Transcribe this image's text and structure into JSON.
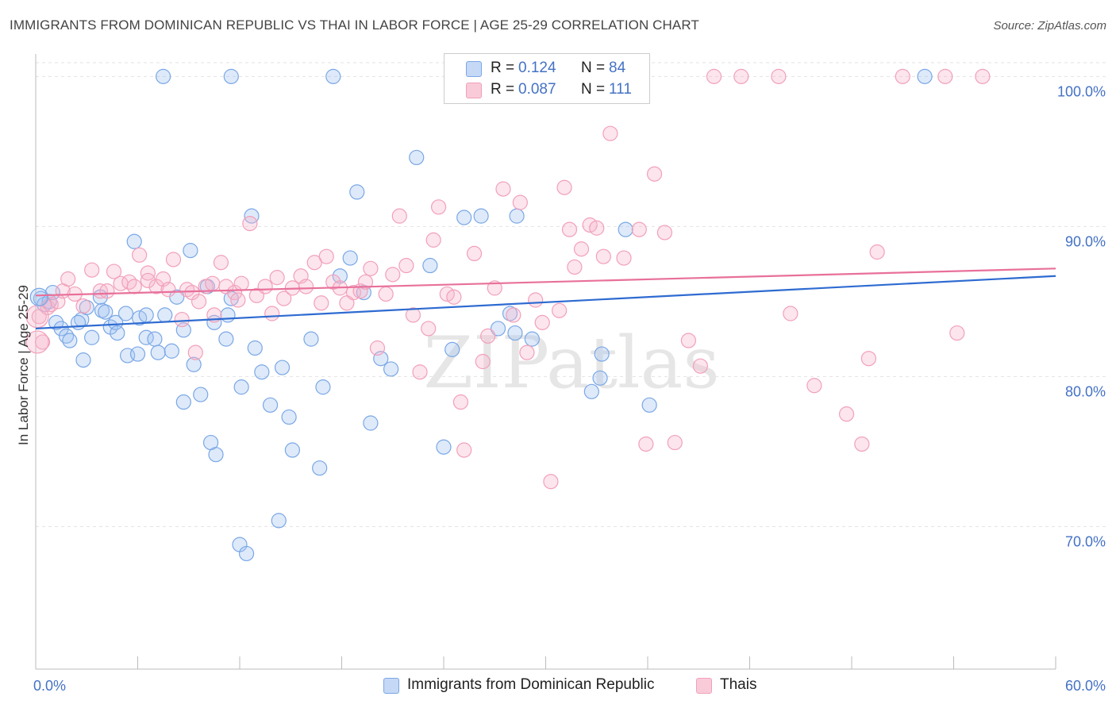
{
  "header": {
    "title": "IMMIGRANTS FROM DOMINICAN REPUBLIC VS THAI IN LABOR FORCE | AGE 25-29 CORRELATION CHART",
    "source": "Source: ZipAtlas.com"
  },
  "watermark": "ZIPatlas",
  "legend": {
    "r_label": "R =",
    "n_label": "N =",
    "rows": [
      {
        "r": "0.124",
        "n": "84"
      },
      {
        "r": "0.087",
        "n": "111"
      }
    ]
  },
  "chart_data": {
    "type": "scatter",
    "title": "IMMIGRANTS FROM DOMINICAN REPUBLIC VS THAI IN LABOR FORCE | AGE 25-29 CORRELATION CHART",
    "xlabel": "",
    "ylabel": "In Labor Force | Age 25-29",
    "xlim": [
      0,
      60
    ],
    "ylim": [
      60.5,
      101.5
    ],
    "x_tick_labels": [
      "0.0%",
      "60.0%"
    ],
    "y_ticks": [
      70,
      80,
      90,
      100
    ],
    "y_tick_labels": [
      "70.0%",
      "80.0%",
      "90.0%",
      "100.0%"
    ],
    "grid": true,
    "legend_position": "top-center",
    "series": [
      {
        "name": "Immigrants from Dominican Republic",
        "color": "#7aa7e6",
        "trend": {
          "x": [
            0,
            60
          ],
          "y": [
            83.2,
            86.7
          ]
        },
        "points": [
          [
            0.3,
            85.2
          ],
          [
            0.5,
            84.8
          ],
          [
            0.8,
            85.0
          ],
          [
            1.0,
            85.6
          ],
          [
            1.2,
            83.6
          ],
          [
            1.5,
            83.2
          ],
          [
            1.8,
            82.7
          ],
          [
            2.0,
            82.4
          ],
          [
            2.7,
            83.8
          ],
          [
            2.5,
            83.6
          ],
          [
            3.0,
            84.6
          ],
          [
            2.8,
            81.1
          ],
          [
            3.3,
            82.6
          ],
          [
            3.9,
            84.4
          ],
          [
            3.8,
            85.3
          ],
          [
            4.1,
            84.3
          ],
          [
            4.4,
            83.3
          ],
          [
            4.7,
            83.6
          ],
          [
            4.8,
            82.9
          ],
          [
            5.3,
            84.2
          ],
          [
            5.4,
            81.4
          ],
          [
            5.8,
            89.0
          ],
          [
            6.0,
            81.5
          ],
          [
            6.1,
            83.9
          ],
          [
            6.5,
            82.6
          ],
          [
            6.5,
            84.1
          ],
          [
            7.0,
            82.5
          ],
          [
            7.2,
            81.6
          ],
          [
            7.6,
            84.1
          ],
          [
            7.5,
            100.0
          ],
          [
            8.0,
            81.7
          ],
          [
            8.3,
            85.3
          ],
          [
            8.7,
            83.1
          ],
          [
            8.7,
            78.3
          ],
          [
            9.1,
            88.4
          ],
          [
            9.3,
            80.8
          ],
          [
            9.7,
            78.8
          ],
          [
            10.1,
            86.0
          ],
          [
            10.3,
            75.6
          ],
          [
            10.5,
            83.6
          ],
          [
            10.6,
            74.8
          ],
          [
            11.2,
            82.5
          ],
          [
            11.3,
            84.1
          ],
          [
            11.5,
            85.2
          ],
          [
            11.5,
            100.0
          ],
          [
            12.0,
            68.8
          ],
          [
            12.1,
            79.3
          ],
          [
            12.4,
            68.2
          ],
          [
            12.7,
            90.7
          ],
          [
            12.9,
            81.9
          ],
          [
            13.3,
            80.3
          ],
          [
            13.8,
            78.1
          ],
          [
            14.3,
            70.4
          ],
          [
            14.5,
            80.6
          ],
          [
            14.9,
            77.3
          ],
          [
            15.1,
            75.1
          ],
          [
            16.2,
            82.5
          ],
          [
            16.7,
            73.9
          ],
          [
            16.9,
            79.3
          ],
          [
            17.5,
            100.0
          ],
          [
            17.9,
            86.7
          ],
          [
            18.5,
            87.9
          ],
          [
            18.9,
            92.3
          ],
          [
            19.3,
            85.6
          ],
          [
            19.7,
            76.9
          ],
          [
            20.3,
            81.2
          ],
          [
            20.9,
            80.5
          ],
          [
            22.4,
            94.6
          ],
          [
            23.2,
            87.4
          ],
          [
            24.0,
            75.3
          ],
          [
            24.5,
            81.8
          ],
          [
            25.2,
            90.6
          ],
          [
            26.2,
            90.7
          ],
          [
            27.2,
            83.2
          ],
          [
            27.9,
            84.2
          ],
          [
            28.2,
            82.9
          ],
          [
            28.3,
            90.7
          ],
          [
            29.2,
            82.5
          ],
          [
            30.2,
            100.0
          ],
          [
            32.7,
            79.0
          ],
          [
            33.2,
            79.9
          ],
          [
            33.3,
            81.5
          ],
          [
            34.7,
            89.8
          ],
          [
            36.1,
            78.1
          ],
          [
            52.3,
            100.0
          ]
        ]
      },
      {
        "name": "Thais",
        "color": "#f2a0b9",
        "trend": {
          "x": [
            0,
            60
          ],
          "y": [
            85.4,
            87.2
          ]
        },
        "points": [
          [
            0.2,
            84.0
          ],
          [
            0.4,
            82.3
          ],
          [
            0.7,
            84.6
          ],
          [
            0.9,
            84.8
          ],
          [
            1.3,
            85.0
          ],
          [
            1.6,
            85.7
          ],
          [
            1.9,
            86.5
          ],
          [
            2.3,
            85.5
          ],
          [
            2.8,
            84.7
          ],
          [
            3.3,
            87.1
          ],
          [
            3.8,
            85.7
          ],
          [
            4.2,
            85.7
          ],
          [
            4.6,
            87.0
          ],
          [
            5.0,
            86.2
          ],
          [
            5.5,
            86.3
          ],
          [
            5.8,
            86.0
          ],
          [
            6.1,
            88.1
          ],
          [
            6.6,
            86.9
          ],
          [
            6.6,
            86.4
          ],
          [
            7.1,
            86.0
          ],
          [
            7.5,
            86.5
          ],
          [
            7.8,
            85.8
          ],
          [
            8.1,
            87.8
          ],
          [
            8.6,
            83.8
          ],
          [
            8.9,
            85.8
          ],
          [
            9.2,
            85.6
          ],
          [
            9.4,
            81.6
          ],
          [
            9.6,
            85.0
          ],
          [
            10.0,
            86.0
          ],
          [
            10.4,
            86.2
          ],
          [
            10.5,
            84.1
          ],
          [
            10.9,
            87.6
          ],
          [
            11.2,
            86.0
          ],
          [
            11.7,
            85.6
          ],
          [
            11.9,
            85.1
          ],
          [
            12.1,
            86.2
          ],
          [
            12.6,
            90.2
          ],
          [
            13.0,
            85.4
          ],
          [
            13.5,
            86.0
          ],
          [
            13.9,
            84.2
          ],
          [
            14.2,
            86.6
          ],
          [
            14.6,
            85.2
          ],
          [
            15.1,
            85.9
          ],
          [
            15.6,
            86.7
          ],
          [
            15.9,
            86.0
          ],
          [
            16.4,
            87.6
          ],
          [
            16.8,
            84.9
          ],
          [
            17.1,
            88.0
          ],
          [
            17.5,
            86.3
          ],
          [
            17.9,
            85.9
          ],
          [
            18.3,
            84.9
          ],
          [
            18.7,
            85.6
          ],
          [
            19.1,
            85.7
          ],
          [
            19.4,
            86.3
          ],
          [
            19.7,
            87.2
          ],
          [
            20.1,
            81.9
          ],
          [
            20.6,
            85.5
          ],
          [
            21.0,
            86.8
          ],
          [
            21.4,
            90.7
          ],
          [
            21.8,
            87.4
          ],
          [
            22.2,
            84.1
          ],
          [
            22.6,
            80.3
          ],
          [
            23.1,
            83.2
          ],
          [
            23.4,
            89.1
          ],
          [
            23.7,
            91.3
          ],
          [
            24.2,
            85.5
          ],
          [
            24.6,
            85.3
          ],
          [
            25.0,
            78.3
          ],
          [
            25.2,
            75.1
          ],
          [
            25.8,
            88.2
          ],
          [
            26.3,
            81.0
          ],
          [
            26.6,
            82.7
          ],
          [
            27.0,
            85.9
          ],
          [
            27.5,
            92.5
          ],
          [
            28.1,
            84.1
          ],
          [
            28.5,
            91.6
          ],
          [
            28.9,
            81.6
          ],
          [
            29.4,
            85.1
          ],
          [
            29.8,
            83.6
          ],
          [
            30.3,
            73.0
          ],
          [
            30.8,
            84.4
          ],
          [
            31.1,
            92.6
          ],
          [
            31.4,
            89.8
          ],
          [
            31.7,
            87.3
          ],
          [
            32.1,
            88.5
          ],
          [
            32.6,
            90.1
          ],
          [
            33.0,
            89.9
          ],
          [
            33.4,
            88.0
          ],
          [
            33.8,
            96.2
          ],
          [
            34.6,
            87.9
          ],
          [
            35.5,
            89.8
          ],
          [
            35.9,
            75.5
          ],
          [
            36.4,
            93.5
          ],
          [
            37.0,
            89.6
          ],
          [
            37.6,
            75.6
          ],
          [
            38.4,
            82.4
          ],
          [
            39.1,
            80.7
          ],
          [
            39.9,
            100.0
          ],
          [
            41.5,
            100.0
          ],
          [
            43.7,
            100.0
          ],
          [
            44.4,
            84.2
          ],
          [
            45.8,
            79.4
          ],
          [
            47.7,
            77.5
          ],
          [
            48.6,
            75.5
          ],
          [
            49.0,
            81.2
          ],
          [
            49.5,
            88.3
          ],
          [
            51.0,
            100.0
          ],
          [
            53.5,
            100.0
          ],
          [
            54.2,
            82.9
          ],
          [
            55.7,
            100.0
          ]
        ]
      }
    ]
  },
  "bottom_legend": [
    {
      "label": "Immigrants from Dominican Republic"
    },
    {
      "label": "Thais"
    }
  ]
}
